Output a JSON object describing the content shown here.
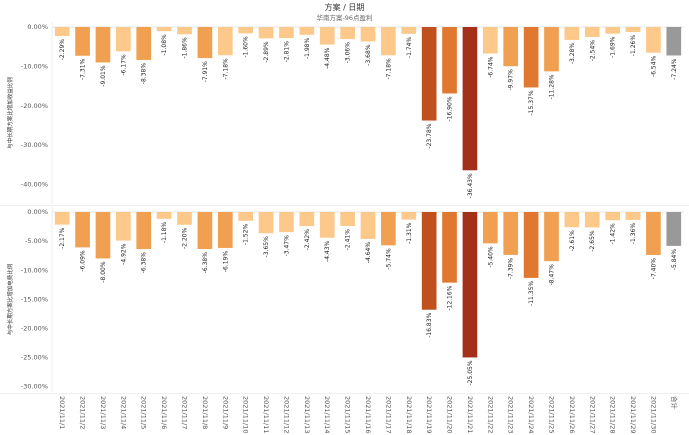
{
  "header": {
    "title": "方案 / 日期",
    "subtitle": "华南方案-96点盈利"
  },
  "chart_data": {
    "type": "bar",
    "categories": [
      "2021/11/1",
      "2021/11/2",
      "2021/11/3",
      "2021/11/4",
      "2021/11/5",
      "2021/11/6",
      "2021/11/7",
      "2021/11/8",
      "2021/11/9",
      "2021/11/10",
      "2021/11/11",
      "2021/11/12",
      "2021/11/13",
      "2021/11/14",
      "2021/11/15",
      "2021/11/16",
      "2021/11/17",
      "2021/11/18",
      "2021/11/19",
      "2021/11/20",
      "2021/11/21",
      "2021/11/22",
      "2021/11/23",
      "2021/11/24",
      "2021/11/25",
      "2021/11/26",
      "2021/11/27",
      "2021/11/28",
      "2021/11/29",
      "2021/11/30",
      "合计"
    ],
    "panels": [
      {
        "ylabel": "与中长期方案比增加收益比例",
        "ylim": [
          -45,
          0
        ],
        "yticks": [
          0,
          -10,
          -20,
          -30,
          -40
        ],
        "tick_labels": [
          "0.00%",
          "-10.00%",
          "-20.00%",
          "-30.00%",
          "-40.00%"
        ],
        "values": [
          -2.29,
          -7.31,
          -9.01,
          -6.17,
          -8.38,
          -1.08,
          -1.86,
          -7.91,
          -7.18,
          -1.6,
          -2.89,
          -2.81,
          -1.98,
          -4.48,
          -3.06,
          -3.68,
          -7.18,
          -1.74,
          -23.78,
          -16.9,
          -36.43,
          -6.74,
          -9.97,
          -15.37,
          -11.28,
          -3.28,
          -2.54,
          -1.69,
          -1.26,
          -6.54,
          -7.24
        ],
        "value_labels": [
          "-2.29%",
          "-7.31%",
          "-9.01%",
          "-6.17%",
          "-8.38%",
          "-1.08%",
          "-1.86%",
          "-7.91%",
          "-7.18%",
          "-1.60%",
          "-2.89%",
          "-2.81%",
          "-1.98%",
          "-4.48%",
          "-3.06%",
          "-3.68%",
          "-7.18%",
          "-1.74%",
          "-23.78%",
          "-16.90%",
          "-36.43%",
          "-6.74%",
          "-9.97%",
          "-15.37%",
          "-11.28%",
          "-3.28%",
          "-2.54%",
          "-1.69%",
          "-1.26%",
          "-6.54%",
          "-7.24%"
        ]
      },
      {
        "ylabel": "与中长期方案比增加电费比例",
        "ylim": [
          -31,
          0
        ],
        "yticks": [
          0,
          -5,
          -10,
          -15,
          -20,
          -25,
          -30
        ],
        "tick_labels": [
          "0.00%",
          "-5.00%",
          "-10.00%",
          "-15.00%",
          "-20.00%",
          "-25.00%",
          "-30.00%"
        ],
        "values": [
          -2.17,
          -6.09,
          -8.0,
          -4.92,
          -6.38,
          -1.18,
          -2.2,
          -6.38,
          -6.19,
          -1.52,
          -3.65,
          -3.47,
          -2.42,
          -4.43,
          -2.41,
          -4.64,
          -5.74,
          -1.31,
          -16.83,
          -12.16,
          -25.05,
          -5.4,
          -7.39,
          -11.35,
          -8.47,
          -2.61,
          -2.65,
          -1.42,
          -1.36,
          -7.4,
          -5.84
        ],
        "value_labels": [
          "-2.17%",
          "-6.09%",
          "-8.00%",
          "-4.92%",
          "-6.38%",
          "-1.18%",
          "-2.20%",
          "-6.38%",
          "-6.19%",
          "-1.52%",
          "-3.65%",
          "-3.47%",
          "-2.42%",
          "-4.43%",
          "-2.41%",
          "-4.64%",
          "-5.74%",
          "-1.31%",
          "-16.83%",
          "-12.16%",
          "-25.05%",
          "-5.40%",
          "-7.39%",
          "-11.35%",
          "-8.47%",
          "-2.61%",
          "-2.65%",
          "-1.42%",
          "-1.36%",
          "-7.40%",
          "-5.84%"
        ]
      }
    ],
    "total_color": "#999999",
    "color_scale": [
      "#FDC98A",
      "#F0A050",
      "#E07830",
      "#C0501E",
      "#A5301A"
    ],
    "grid": false,
    "legend": "none"
  }
}
